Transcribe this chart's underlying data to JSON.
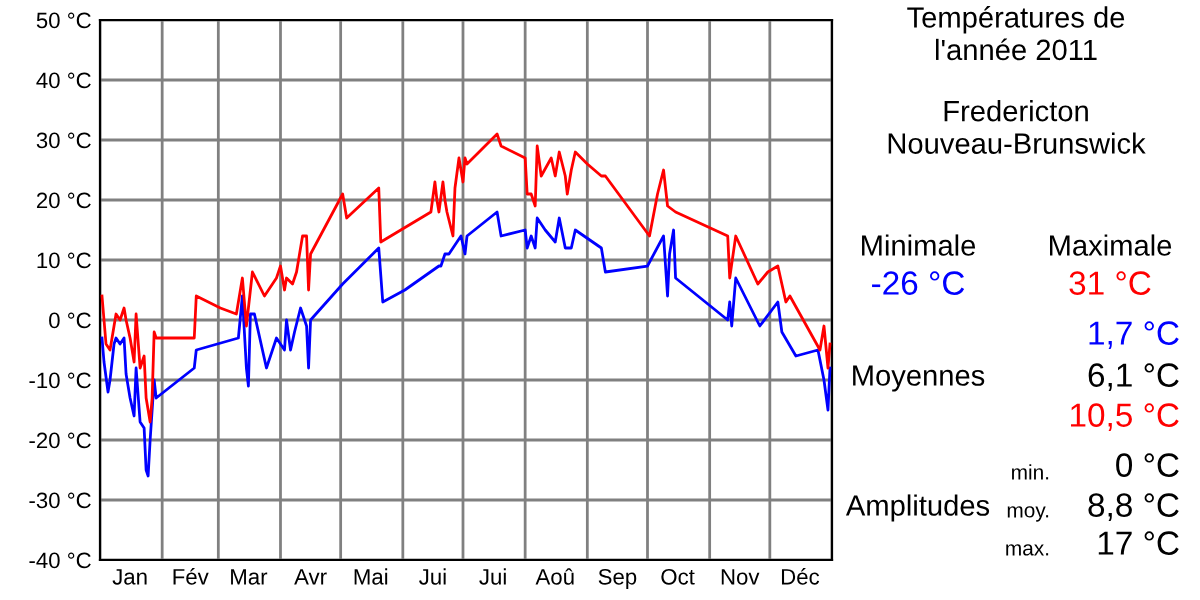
{
  "chart_data": {
    "type": "line",
    "title": "Températures de\nl'année 2011",
    "subtitle": "Fredericton\nNouveau-Brunswick",
    "annotations": [
      "Minimale",
      "Maximale",
      "-26 °C",
      "31 °C",
      "1,7 °C",
      "Moyennes",
      "6,1 °C",
      "10,5 °C",
      "min.",
      "0 °C",
      "Amplitudes",
      "moy.",
      "8,8 °C",
      "max.",
      "17 °C"
    ],
    "xlim": [
      "2011-01-01",
      "2012-01-01"
    ],
    "xticks": [
      {
        "value": "2011-01-01",
        "label": null
      },
      {
        "value": "2011-01-16",
        "label": "Jan"
      },
      {
        "value": "2011-02-01",
        "label": null
      },
      {
        "value": "2011-02-15",
        "label": "Fév"
      },
      {
        "value": "2011-03-01",
        "label": null
      },
      {
        "value": "2011-03-16",
        "label": "Mar"
      },
      {
        "value": "2011-04-01",
        "label": null
      },
      {
        "value": "2011-04-16",
        "label": "Avr"
      },
      {
        "value": "2011-05-01",
        "label": null
      },
      {
        "value": "2011-05-16",
        "label": "Mai"
      },
      {
        "value": "2011-06-01",
        "label": null
      },
      {
        "value": "2011-06-16",
        "label": "Jui"
      },
      {
        "value": "2011-07-01",
        "label": null
      },
      {
        "value": "2011-07-16",
        "label": "Jui"
      },
      {
        "value": "2011-08-01",
        "label": null
      },
      {
        "value": "2011-08-16",
        "label": "Aoû"
      },
      {
        "value": "2011-09-01",
        "label": null
      },
      {
        "value": "2011-09-16",
        "label": "Sep"
      },
      {
        "value": "2011-10-01",
        "label": null
      },
      {
        "value": "2011-10-16",
        "label": "Oct"
      },
      {
        "value": "2011-11-01",
        "label": null
      },
      {
        "value": "2011-11-16",
        "label": "Nov"
      },
      {
        "value": "2011-12-01",
        "label": null
      },
      {
        "value": "2011-12-16",
        "label": "Déc"
      },
      {
        "value": "2012-01-01",
        "label": null
      }
    ],
    "ylim": [
      -40,
      50
    ],
    "yticks": [
      {
        "value": -40,
        "label": "-40 °C"
      },
      {
        "value": -30,
        "label": "-30 °C"
      },
      {
        "value": -20,
        "label": "-20 °C"
      },
      {
        "value": -10,
        "label": "-10 °C"
      },
      {
        "value": 0,
        "label": "0 °C"
      },
      {
        "value": 10,
        "label": "10 °C"
      },
      {
        "value": 20,
        "label": "20 °C"
      },
      {
        "value": 30,
        "label": "30 °C"
      },
      {
        "value": 40,
        "label": "40 °C"
      },
      {
        "value": 50,
        "label": "50 °C"
      }
    ],
    "grid": true,
    "marker": "none",
    "line_style": "solid",
    "series": [
      {
        "color": "#0000ff",
        "x": [
          "2011-01-02",
          "2011-01-03",
          "2011-01-05",
          "2011-01-06",
          "2011-01-08",
          "2011-01-09",
          "2011-01-11",
          "2011-01-13",
          "2011-01-14",
          "2011-01-16",
          "2011-01-18",
          "2011-01-19",
          "2011-01-21",
          "2011-01-23",
          "2011-01-24",
          "2011-01-25",
          "2011-01-26",
          "2011-01-28",
          "2011-01-29",
          "2011-02-17",
          "2011-02-18",
          "2011-03-11",
          "2011-03-13",
          "2011-03-15",
          "2011-03-16",
          "2011-03-17",
          "2011-03-19",
          "2011-03-25",
          "2011-03-30",
          "2011-04-03",
          "2011-04-04",
          "2011-04-06",
          "2011-04-08",
          "2011-04-11",
          "2011-04-14",
          "2011-04-15",
          "2011-04-16",
          "2011-05-02",
          "2011-05-20",
          "2011-05-22",
          "2011-06-02",
          "2011-06-19",
          "2011-06-20",
          "2011-06-22",
          "2011-06-24",
          "2011-06-30",
          "2011-07-02",
          "2011-07-03",
          "2011-07-18",
          "2011-07-20",
          "2011-08-01",
          "2011-08-02",
          "2011-08-04",
          "2011-08-06",
          "2011-08-07",
          "2011-08-11",
          "2011-08-16",
          "2011-08-18",
          "2011-08-21",
          "2011-08-24",
          "2011-08-26",
          "2011-09-08",
          "2011-09-10",
          "2011-10-01",
          "2011-10-09",
          "2011-10-11",
          "2011-10-12",
          "2011-10-14",
          "2011-10-15",
          "2011-11-10",
          "2011-11-11",
          "2011-11-12",
          "2011-11-14",
          "2011-11-26",
          "2011-12-05",
          "2011-12-07",
          "2011-12-14",
          "2011-12-25",
          "2011-12-28",
          "2011-12-30",
          "2011-12-31"
        ],
        "values": [
          -3,
          -7,
          -12,
          -10,
          -4,
          -3,
          -4,
          -3,
          -9,
          -13,
          -16,
          -8,
          -17,
          -18,
          -25,
          -26,
          -20,
          -10,
          -13,
          -8,
          -5,
          -3,
          4,
          -8,
          -11,
          1,
          1,
          -8,
          -3,
          -5,
          0,
          -5,
          -2,
          2,
          -1,
          -8,
          0,
          6,
          12,
          3,
          5,
          9,
          9,
          11,
          11,
          14,
          11,
          14,
          18,
          14,
          15,
          12,
          14,
          12,
          17,
          15,
          13,
          17,
          12,
          12,
          15,
          12,
          8,
          9,
          14,
          4,
          11,
          15,
          7,
          0,
          3,
          -1,
          7,
          -1,
          3,
          -2,
          -6,
          -5,
          -10,
          -15,
          -8
        ]
      },
      {
        "color": "#ff0000",
        "x": [
          "2011-01-02",
          "2011-01-03",
          "2011-01-04",
          "2011-01-06",
          "2011-01-08",
          "2011-01-09",
          "2011-01-11",
          "2011-01-13",
          "2011-01-14",
          "2011-01-16",
          "2011-01-18",
          "2011-01-19",
          "2011-01-21",
          "2011-01-23",
          "2011-01-24",
          "2011-01-26",
          "2011-01-27",
          "2011-01-28",
          "2011-01-29",
          "2011-02-17",
          "2011-02-18",
          "2011-03-02",
          "2011-03-10",
          "2011-03-13",
          "2011-03-15",
          "2011-03-18",
          "2011-03-24",
          "2011-03-30",
          "2011-04-01",
          "2011-04-03",
          "2011-04-04",
          "2011-04-07",
          "2011-04-09",
          "2011-04-12",
          "2011-04-14",
          "2011-04-15",
          "2011-04-16",
          "2011-05-02",
          "2011-05-04",
          "2011-05-20",
          "2011-05-21",
          "2011-05-31",
          "2011-06-15",
          "2011-06-17",
          "2011-06-18",
          "2011-06-19",
          "2011-06-21",
          "2011-06-22",
          "2011-06-23",
          "2011-06-26",
          "2011-06-27",
          "2011-06-29",
          "2011-07-01",
          "2011-07-02",
          "2011-07-03",
          "2011-07-18",
          "2011-07-20",
          "2011-08-01",
          "2011-08-02",
          "2011-08-04",
          "2011-08-06",
          "2011-08-07",
          "2011-08-09",
          "2011-08-14",
          "2011-08-16",
          "2011-08-18",
          "2011-08-21",
          "2011-08-22",
          "2011-08-24",
          "2011-08-26",
          "2011-09-01",
          "2011-09-08",
          "2011-09-10",
          "2011-10-02",
          "2011-10-06",
          "2011-10-09",
          "2011-10-11",
          "2011-10-15",
          "2011-11-10",
          "2011-11-11",
          "2011-11-14",
          "2011-11-25",
          "2011-11-30",
          "2011-12-05",
          "2011-12-07",
          "2011-12-09",
          "2011-12-11",
          "2011-12-26",
          "2011-12-28",
          "2011-12-30",
          "2011-12-31"
        ],
        "values": [
          4,
          0,
          -4,
          -5,
          -1,
          1,
          0,
          2,
          0,
          -3,
          -7,
          1,
          -8,
          -6,
          -13,
          -17,
          -13,
          -2,
          -3,
          -3,
          4,
          2,
          1,
          7,
          -1,
          8,
          4,
          7,
          9,
          5,
          7,
          6,
          8,
          14,
          14,
          5,
          11,
          21,
          17,
          22,
          13,
          15,
          18,
          23,
          20,
          18,
          23,
          20,
          18,
          14,
          22,
          27,
          23,
          27,
          26,
          31,
          29,
          27,
          21,
          21,
          19,
          29,
          24,
          27,
          24,
          28,
          24,
          21,
          25,
          28,
          26,
          24,
          24,
          14,
          21,
          25,
          19,
          18,
          14,
          7,
          14,
          6,
          8,
          9,
          6,
          3,
          4,
          -5,
          -1,
          -8,
          -4
        ]
      }
    ]
  }
}
